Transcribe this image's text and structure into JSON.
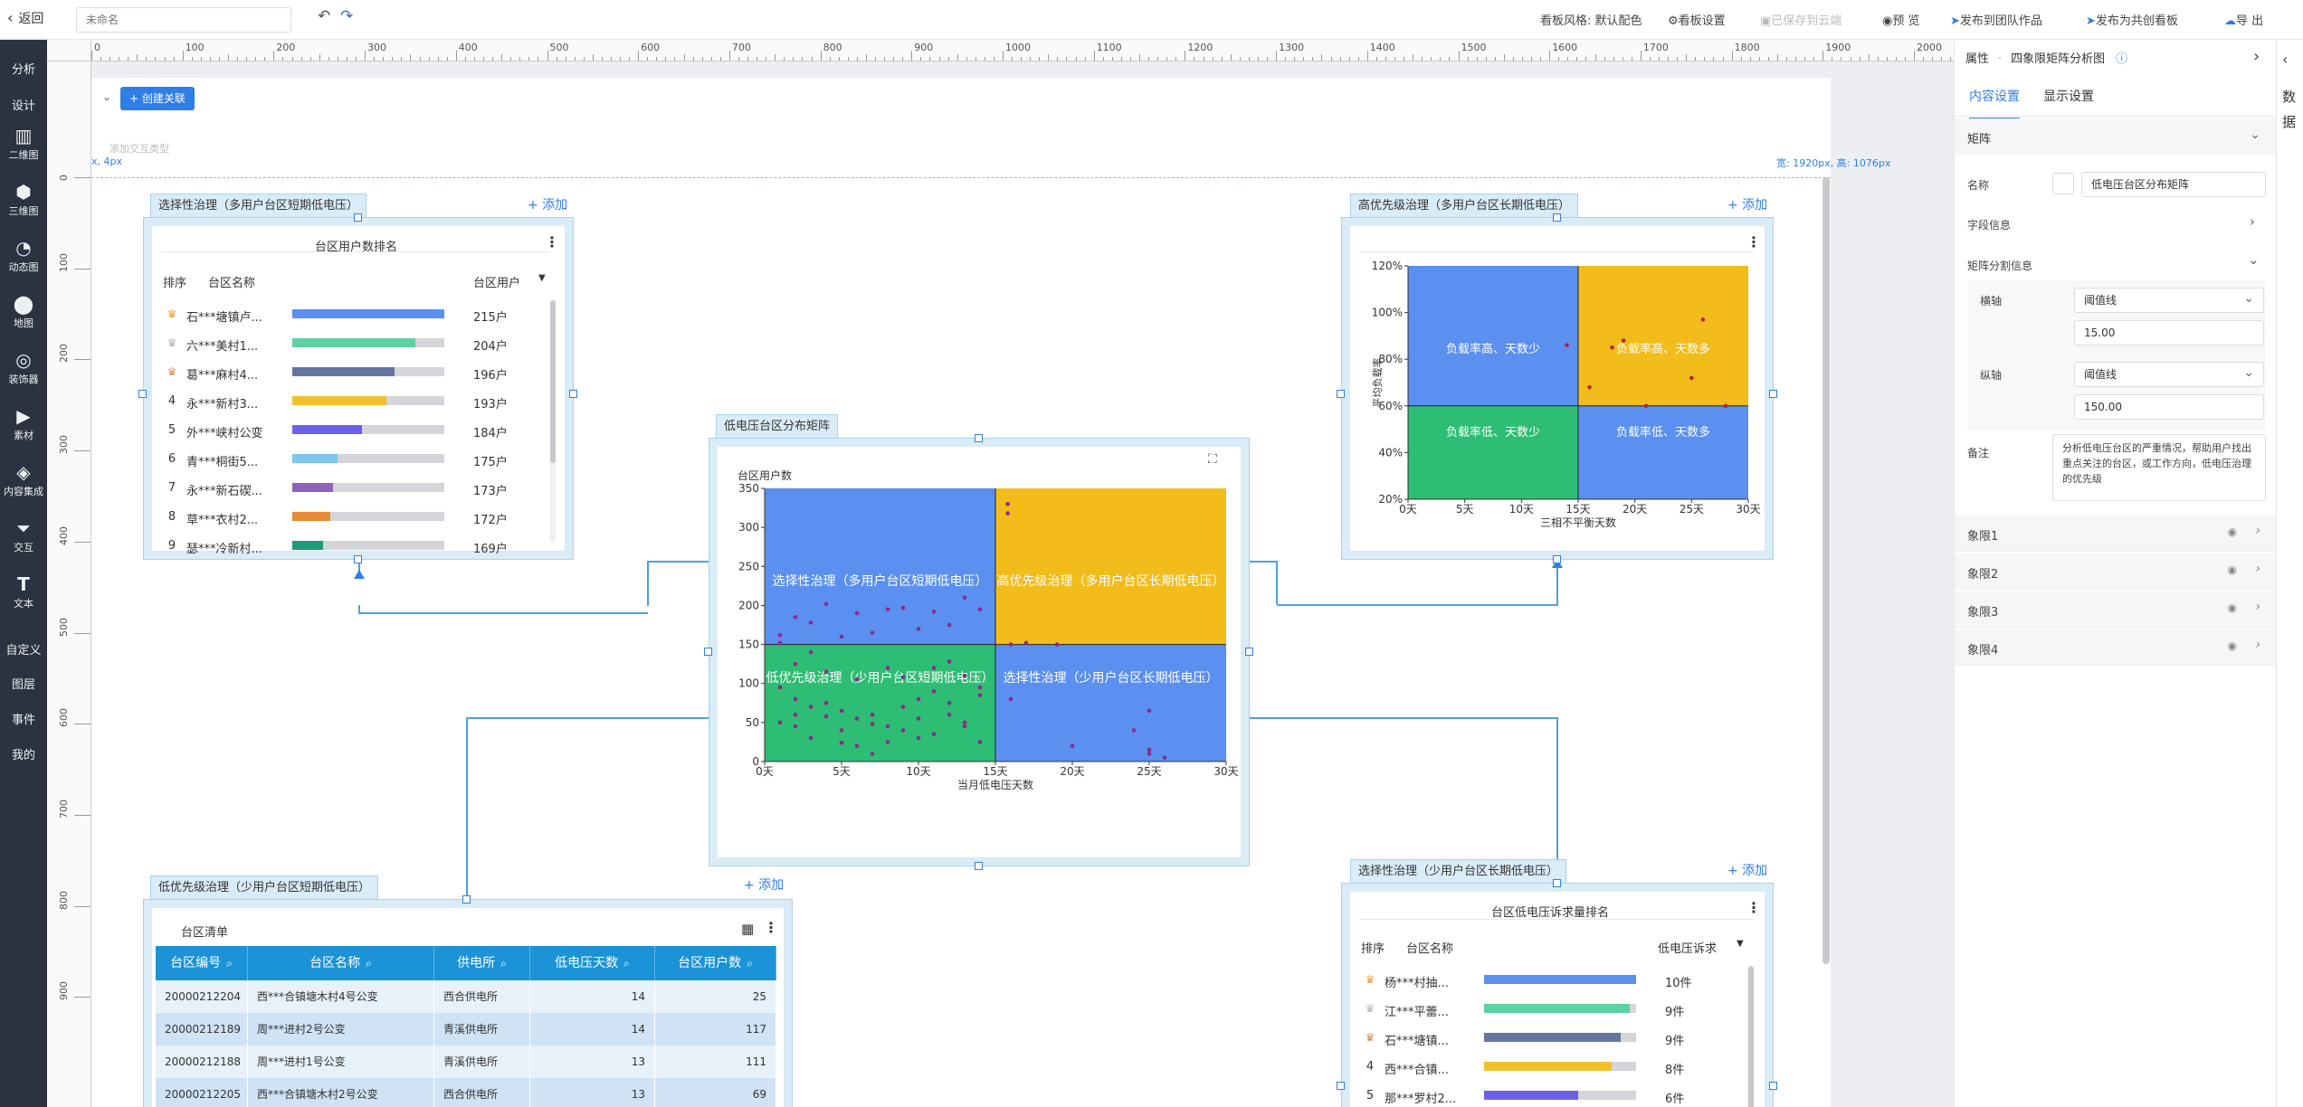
{
  "topbar": {
    "back": "返回",
    "title_placeholder": "未命名",
    "theme": "看板风格: 默认配色",
    "settings": "看板设置",
    "saved": "已保存到云端",
    "preview": "预 览",
    "publish_team": "发布到团队作品",
    "publish_co": "发布为共创看板",
    "export": "导 出"
  },
  "nav": {
    "analysis": "分析",
    "design": "设计",
    "chart2d": "二维图",
    "chart3d": "三维图",
    "dynamic": "动态图",
    "map": "地图",
    "decor": "装饰器",
    "material": "素材",
    "content": "内容集成",
    "interact": "交互",
    "text": "文本",
    "custom": "自定义",
    "layer": "图层",
    "event": "事件",
    "mine": "我的"
  },
  "ruler": {
    "h": [
      "0",
      "100",
      "200",
      "300",
      "400",
      "500",
      "600",
      "700",
      "800",
      "900",
      "1000",
      "1100",
      "1200",
      "1300",
      "1400",
      "1500",
      "1600",
      "1700",
      "1800",
      "1900",
      "2000"
    ],
    "v": [
      "0",
      "100",
      "200",
      "300",
      "400",
      "500",
      "600",
      "700",
      "800",
      "900"
    ]
  },
  "canvas": {
    "create_link": "+ 创建关联",
    "add_type": "添加交互类型",
    "size_left": "x, 4px",
    "size_right": "宽: 1920px, 高: 1076px",
    "add": "+ 添加"
  },
  "card_tl": {
    "tab": "选择性治理（多用户台区短期低电压）",
    "title": "台区用户数排名",
    "headers": [
      "排序",
      "台区名称",
      "台区用户"
    ],
    "rows": [
      {
        "no": "1",
        "name": "石***塘镇卢...",
        "val": "215户",
        "pct": 100,
        "color": "#5b8ff0"
      },
      {
        "no": "2",
        "name": "六***美村1...",
        "val": "204户",
        "pct": 81,
        "color": "#5ed1a4"
      },
      {
        "no": "3",
        "name": "葛***麻村4...",
        "val": "196户",
        "pct": 67,
        "color": "#6476a0"
      },
      {
        "no": "4",
        "name": "永***新村3...",
        "val": "193户",
        "pct": 62,
        "color": "#f2c02a"
      },
      {
        "no": "5",
        "name": "外***峡村公变",
        "val": "184户",
        "pct": 46,
        "color": "#6d60e8"
      },
      {
        "no": "6",
        "name": "青***桐街5...",
        "val": "175户",
        "pct": 30,
        "color": "#7cc6ec"
      },
      {
        "no": "7",
        "name": "永***新石碶...",
        "val": "173户",
        "pct": 27,
        "color": "#8c63b6"
      },
      {
        "no": "8",
        "name": "草***衣村2...",
        "val": "172户",
        "pct": 25,
        "color": "#e68b35"
      },
      {
        "no": "9",
        "name": "瑟***冷新村...",
        "val": "169户",
        "pct": 20,
        "color": "#1e9a7a"
      }
    ]
  },
  "card_center": {
    "tab": "低电压台区分布矩阵",
    "ylabel": "台区用户数",
    "xlabel": "当月低电压天数",
    "q": {
      "tl": "选择性治理（多用户台区短期低电压）",
      "tr": "高优先级治理（多用户台区长期低电压）",
      "bl": "低优先级治理（少用户台区短期低电压）",
      "br": "选择性治理（少用户台区长期低电压）"
    }
  },
  "card_tr": {
    "tab": "高优先级治理（多用户台区长期低电压）",
    "ylabel": "平均负载率",
    "xlabel": "三相不平衡天数",
    "q": {
      "tl": "负载率高、天数少",
      "tr": "负载率高、天数多",
      "bl": "负载率低、天数少",
      "br": "负载率低、天数多"
    }
  },
  "card_bl": {
    "tab": "低优先级治理（少用户台区短期低电压）",
    "title": "台区清单",
    "headers": [
      "台区编号",
      "台区名称",
      "供电所",
      "低电压天数",
      "台区用户数"
    ],
    "rows": [
      [
        "20000212204",
        "西***合镇塘木村4号公变",
        "西合供电所",
        "14",
        "25"
      ],
      [
        "20000212189",
        "周***进村2号公变",
        "青溪供电所",
        "14",
        "117"
      ],
      [
        "20000212188",
        "周***进村1号公变",
        "青溪供电所",
        "13",
        "111"
      ],
      [
        "20000212205",
        "西***合镇塘木村2号公变",
        "西合供电所",
        "13",
        "69"
      ]
    ]
  },
  "card_br": {
    "tab": "选择性治理（少用户台区长期低电压）",
    "title": "台区低电压诉求量排名",
    "headers": [
      "排序",
      "台区名称",
      "低电压诉求"
    ],
    "rows": [
      {
        "no": "1",
        "name": "杨***村抽...",
        "val": "10件",
        "pct": 100,
        "color": "#5b8ff0"
      },
      {
        "no": "2",
        "name": "江***平蕾...",
        "val": "9件",
        "pct": 96,
        "color": "#5ed1a4"
      },
      {
        "no": "3",
        "name": "石***塘镇...",
        "val": "9件",
        "pct": 90,
        "color": "#6476a0"
      },
      {
        "no": "4",
        "name": "西***合镇...",
        "val": "8件",
        "pct": 84,
        "color": "#f2c02a"
      },
      {
        "no": "5",
        "name": "那***罗村2...",
        "val": "6件",
        "pct": 62,
        "color": "#6d60e8"
      }
    ]
  },
  "props": {
    "header": "属性",
    "subtitle": "四象限矩阵分析图",
    "tab_content": "内容设置",
    "tab_display": "显示设置",
    "sec_matrix": "矩阵",
    "name_label": "名称",
    "name_value": "低电压台区分布矩阵",
    "field_info": "字段信息",
    "split_info": "矩阵分割信息",
    "h_label": "横轴",
    "h_sel": "阈值线",
    "h_val": "15.00",
    "v_label": "纵轴",
    "v_sel": "阈值线",
    "v_val": "150.00",
    "note_label": "备注",
    "note": "分析低电压台区的严重情况，帮助用户找出重点关注的台区，或工作方向，低电压治理的优先级",
    "quadrants": [
      "象限1",
      "象限2",
      "象限3",
      "象限4"
    ]
  },
  "rightstrip": {
    "a": "数",
    "b": "据"
  },
  "chart_data": [
    {
      "type": "scatter",
      "title": "低电压台区分布矩阵",
      "xlabel": "当月低电压天数",
      "ylabel": "台区用户数",
      "xlim": [
        0,
        30
      ],
      "ylim": [
        0,
        350
      ],
      "xticks": [
        "0天",
        "5天",
        "10天",
        "15天",
        "20天",
        "25天",
        "30天"
      ],
      "yticks": [
        "0",
        "50",
        "100",
        "150",
        "200",
        "250",
        "300",
        "350"
      ],
      "thresholds": {
        "x": 15,
        "y": 150
      },
      "quadrant_colors": {
        "tl": "#5b8ff0",
        "tr": "#f2bc1a",
        "bl": "#2dbd74",
        "br": "#5b8ff0"
      },
      "point_color": "#8b2a8c",
      "points": [
        [
          15.8,
          330
        ],
        [
          15.8,
          318
        ],
        [
          1,
          162
        ],
        [
          1,
          152
        ],
        [
          2,
          185
        ],
        [
          3,
          178
        ],
        [
          4,
          202
        ],
        [
          6,
          190
        ],
        [
          8,
          195
        ],
        [
          9,
          197
        ],
        [
          11,
          192
        ],
        [
          13,
          210
        ],
        [
          14,
          195
        ],
        [
          12,
          175
        ],
        [
          10,
          170
        ],
        [
          7,
          165
        ],
        [
          5,
          160
        ],
        [
          3,
          140
        ],
        [
          2,
          125
        ],
        [
          4,
          115
        ],
        [
          6,
          105
        ],
        [
          8,
          120
        ],
        [
          9,
          108
        ],
        [
          11,
          120
        ],
        [
          12,
          128
        ],
        [
          13,
          110
        ],
        [
          14,
          95
        ],
        [
          1,
          95
        ],
        [
          2,
          80
        ],
        [
          3,
          70
        ],
        [
          5,
          65
        ],
        [
          6,
          55
        ],
        [
          7,
          60
        ],
        [
          8,
          45
        ],
        [
          9,
          40
        ],
        [
          10,
          55
        ],
        [
          11,
          35
        ],
        [
          12,
          60
        ],
        [
          13,
          45
        ],
        [
          14,
          25
        ],
        [
          1,
          50
        ],
        [
          2,
          45
        ],
        [
          3,
          30
        ],
        [
          4,
          75
        ],
        [
          5,
          40
        ],
        [
          6,
          20
        ],
        [
          7,
          10
        ],
        [
          8,
          25
        ],
        [
          9,
          70
        ],
        [
          10,
          80
        ],
        [
          11,
          90
        ],
        [
          12,
          75
        ],
        [
          13,
          50
        ],
        [
          14,
          85
        ],
        [
          4,
          58
        ],
        [
          5,
          24
        ],
        [
          7,
          48
        ],
        [
          10,
          30
        ],
        [
          2,
          60
        ],
        [
          16,
          150
        ],
        [
          17,
          152
        ],
        [
          19,
          150
        ],
        [
          20,
          20
        ],
        [
          24,
          40
        ],
        [
          25,
          65
        ],
        [
          25,
          15
        ],
        [
          25,
          10
        ],
        [
          26,
          5
        ],
        [
          16,
          80
        ]
      ]
    },
    {
      "type": "scatter",
      "title": "高优先级治理（多用户台区长期低电压）",
      "xlabel": "三相不平衡天数",
      "ylabel": "平均负载率",
      "xlim": [
        0,
        30
      ],
      "ylim": [
        20,
        120
      ],
      "xticks": [
        "0天",
        "5天",
        "10天",
        "15天",
        "20天",
        "25天",
        "30天"
      ],
      "yticks": [
        "20%",
        "40%",
        "60%",
        "80%",
        "100%",
        "120%"
      ],
      "thresholds": {
        "x": 15,
        "y": 60
      },
      "quadrant_colors": {
        "tl": "#5b8ff0",
        "tr": "#f2bc1a",
        "bl": "#2dbd74",
        "br": "#5b8ff0"
      },
      "point_color": "#b8232f",
      "points": [
        [
          14,
          86
        ],
        [
          16,
          68
        ],
        [
          18,
          85
        ],
        [
          19,
          88
        ],
        [
          26,
          97
        ],
        [
          25,
          72
        ],
        [
          21,
          60
        ],
        [
          28,
          60
        ]
      ]
    }
  ]
}
